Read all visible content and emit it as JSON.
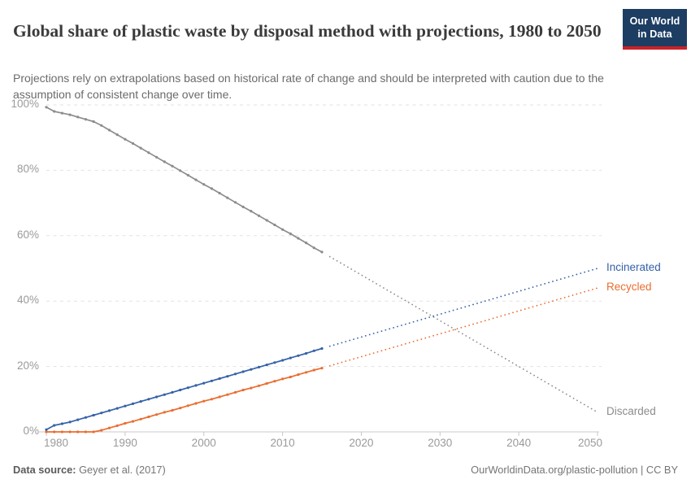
{
  "header": {
    "title": "Global share of plastic waste by disposal method with projections, 1980 to 2050",
    "subtitle": "Projections rely on extrapolations based on historical rate of change and should be interpreted with caution due to the assumption of consistent change over time.",
    "logo": {
      "line1": "Our World",
      "line2": "in Data",
      "bg_color": "#1d3d63",
      "bar_color": "#cc2128"
    }
  },
  "footer": {
    "source_label": "Data source:",
    "source_value": "Geyer et al. (2017)",
    "attribution": "OurWorldinData.org/plastic-pollution | CC BY"
  },
  "chart_data": {
    "type": "line",
    "unit": "%",
    "xlim": [
      1980,
      2050
    ],
    "ylim": [
      0,
      100
    ],
    "x_ticks": [
      1980,
      1990,
      2000,
      2010,
      2020,
      2030,
      2040,
      2050
    ],
    "y_ticks": [
      0,
      20,
      40,
      60,
      80,
      100
    ],
    "grid": "dashed horizontal gridlines",
    "legend_position": "labels at right end of lines",
    "note": "Solid lines with yearly markers are historical (1980-2015); dotted straight lines are projections to 2050",
    "colors": {
      "grid": "#e2e2e2",
      "axis": "#c8c8c8",
      "tick_text": "#9a9a9a"
    },
    "series": [
      {
        "name": "Discarded",
        "color": "#8c8c8c",
        "label_color": "#8c8c8c",
        "start_year": 1980,
        "end_year": 2015,
        "historical_values": [
          99.3,
          98.0,
          97.5,
          97.0,
          96.3,
          95.6,
          94.9,
          93.7,
          92.3,
          90.9,
          89.5,
          88.2,
          86.8,
          85.4,
          84.0,
          82.6,
          81.3,
          79.9,
          78.5,
          77.1,
          75.7,
          74.4,
          73.0,
          71.6,
          70.2,
          68.8,
          67.5,
          66.1,
          64.7,
          63.3,
          61.9,
          60.6,
          59.2,
          57.8,
          56.3,
          55.0
        ],
        "projection": {
          "years": [
            2016,
            2050
          ],
          "values": [
            53.6,
            6.0
          ],
          "style": "dotted"
        }
      },
      {
        "name": "Recycled",
        "color": "#ea6d30",
        "label_color": "#ea6d30",
        "start_year": 1980,
        "end_year": 2015,
        "historical_values": [
          0,
          0,
          0,
          0,
          0,
          0,
          0,
          0.5,
          1.2,
          1.9,
          2.6,
          3.2,
          3.9,
          4.6,
          5.3,
          6.0,
          6.6,
          7.3,
          8.0,
          8.7,
          9.4,
          10.0,
          10.7,
          11.4,
          12.1,
          12.8,
          13.4,
          14.1,
          14.8,
          15.5,
          16.2,
          16.8,
          17.5,
          18.2,
          18.9,
          19.5
        ],
        "projection": {
          "years": [
            2016,
            2050
          ],
          "values": [
            20.2,
            44.0
          ],
          "style": "dotted"
        }
      },
      {
        "name": "Incinerated",
        "color": "#3462a8",
        "label_color": "#3462a8",
        "start_year": 1980,
        "end_year": 2015,
        "historical_values": [
          0.7,
          2.0,
          2.5,
          3.0,
          3.7,
          4.4,
          5.1,
          5.8,
          6.5,
          7.2,
          7.9,
          8.6,
          9.3,
          10.0,
          10.7,
          11.4,
          12.1,
          12.8,
          13.5,
          14.2,
          14.9,
          15.6,
          16.3,
          17.0,
          17.7,
          18.4,
          19.1,
          19.8,
          20.5,
          21.2,
          21.9,
          22.6,
          23.3,
          24.0,
          24.8,
          25.5
        ],
        "projection": {
          "years": [
            2016,
            2050
          ],
          "values": [
            26.2,
            50.0
          ],
          "style": "dotted"
        }
      }
    ]
  }
}
